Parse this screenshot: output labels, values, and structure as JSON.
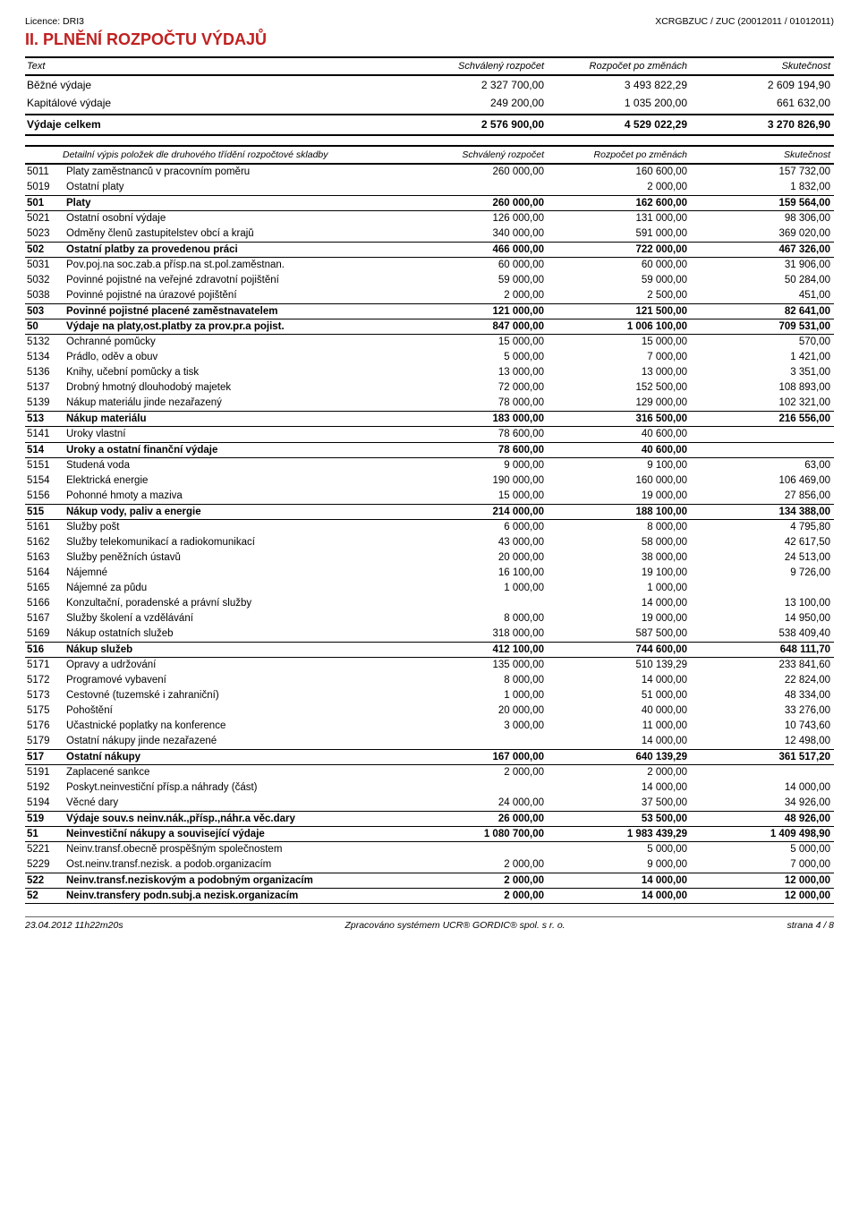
{
  "header": {
    "licence": "Licence: DRI3",
    "system": "XCRGBZUC / ZUC (20012011 / 01012011)"
  },
  "title": "II. PLNĚNÍ ROZPOČTU VÝDAJŮ",
  "columns": {
    "text": "Text",
    "approved": "Schválený rozpočet",
    "adjusted": "Rozpočet po změnách",
    "actual": "Skutečnost"
  },
  "summary": [
    {
      "label": "Běžné výdaje",
      "approved": "2 327 700,00",
      "adjusted": "3 493 822,29",
      "actual": "2 609 194,90"
    },
    {
      "label": "Kapitálové výdaje",
      "approved": "249 200,00",
      "adjusted": "1 035 200,00",
      "actual": "661 632,00"
    },
    {
      "label": "Výdaje celkem",
      "approved": "2 576 900,00",
      "adjusted": "4 529 022,29",
      "actual": "3 270 826,90",
      "bold": true
    }
  ],
  "subheader": "Detailní výpis položek dle druhového třídění rozpočtové skladby",
  "rows": [
    {
      "code": "5011",
      "text": "Platy zaměstnanců v pracovním poměru",
      "a": "260 000,00",
      "b": "160 600,00",
      "c": "157 732,00"
    },
    {
      "code": "5019",
      "text": "Ostatní platy",
      "a": "",
      "b": "2 000,00",
      "c": "1 832,00"
    },
    {
      "code": "501",
      "text": "Platy",
      "a": "260 000,00",
      "b": "162 600,00",
      "c": "159 564,00",
      "bold": true
    },
    {
      "code": "5021",
      "text": "Ostatní osobní výdaje",
      "a": "126 000,00",
      "b": "131 000,00",
      "c": "98 306,00"
    },
    {
      "code": "5023",
      "text": "Odměny členů zastupitelstev obcí a krajů",
      "a": "340 000,00",
      "b": "591 000,00",
      "c": "369 020,00"
    },
    {
      "code": "502",
      "text": "Ostatní platby za provedenou práci",
      "a": "466 000,00",
      "b": "722 000,00",
      "c": "467 326,00",
      "bold": true
    },
    {
      "code": "5031",
      "text": "Pov.poj.na soc.zab.a přísp.na st.pol.zaměstnan.",
      "a": "60 000,00",
      "b": "60 000,00",
      "c": "31 906,00"
    },
    {
      "code": "5032",
      "text": "Povinné pojistné na veřejné zdravotní pojištění",
      "a": "59 000,00",
      "b": "59 000,00",
      "c": "50 284,00"
    },
    {
      "code": "5038",
      "text": "Povinné pojistné na úrazové pojištění",
      "a": "2 000,00",
      "b": "2 500,00",
      "c": "451,00"
    },
    {
      "code": "503",
      "text": "Povinné pojistné placené zaměstnavatelem",
      "a": "121 000,00",
      "b": "121 500,00",
      "c": "82 641,00",
      "bold": true
    },
    {
      "code": "50",
      "text": "Výdaje na platy,ost.platby za prov.pr.a pojist.",
      "a": "847 000,00",
      "b": "1 006 100,00",
      "c": "709 531,00",
      "bold": true
    },
    {
      "code": "5132",
      "text": "Ochranné pomůcky",
      "a": "15 000,00",
      "b": "15 000,00",
      "c": "570,00"
    },
    {
      "code": "5134",
      "text": "Prádlo, oděv a obuv",
      "a": "5 000,00",
      "b": "7 000,00",
      "c": "1 421,00"
    },
    {
      "code": "5136",
      "text": "Knihy, učební pomůcky a tisk",
      "a": "13 000,00",
      "b": "13 000,00",
      "c": "3 351,00"
    },
    {
      "code": "5137",
      "text": "Drobný hmotný dlouhodobý majetek",
      "a": "72 000,00",
      "b": "152 500,00",
      "c": "108 893,00"
    },
    {
      "code": "5139",
      "text": "Nákup materiálu jinde nezařazený",
      "a": "78 000,00",
      "b": "129 000,00",
      "c": "102 321,00"
    },
    {
      "code": "513",
      "text": "Nákup materiálu",
      "a": "183 000,00",
      "b": "316 500,00",
      "c": "216 556,00",
      "bold": true
    },
    {
      "code": "5141",
      "text": "Úroky vlastní",
      "a": "78 600,00",
      "b": "40 600,00",
      "c": ""
    },
    {
      "code": "514",
      "text": "Úroky a ostatní finanční výdaje",
      "a": "78 600,00",
      "b": "40 600,00",
      "c": "",
      "bold": true
    },
    {
      "code": "5151",
      "text": "Studená voda",
      "a": "9 000,00",
      "b": "9 100,00",
      "c": "63,00"
    },
    {
      "code": "5154",
      "text": "Elektrická energie",
      "a": "190 000,00",
      "b": "160 000,00",
      "c": "106 469,00"
    },
    {
      "code": "5156",
      "text": "Pohonné hmoty a maziva",
      "a": "15 000,00",
      "b": "19 000,00",
      "c": "27 856,00"
    },
    {
      "code": "515",
      "text": "Nákup vody, paliv a energie",
      "a": "214 000,00",
      "b": "188 100,00",
      "c": "134 388,00",
      "bold": true
    },
    {
      "code": "5161",
      "text": "Služby pošt",
      "a": "6 000,00",
      "b": "8 000,00",
      "c": "4 795,80"
    },
    {
      "code": "5162",
      "text": "Služby telekomunikací a radiokomunikací",
      "a": "43 000,00",
      "b": "58 000,00",
      "c": "42 617,50"
    },
    {
      "code": "5163",
      "text": "Služby peněžních ústavů",
      "a": "20 000,00",
      "b": "38 000,00",
      "c": "24 513,00"
    },
    {
      "code": "5164",
      "text": "Nájemné",
      "a": "16 100,00",
      "b": "19 100,00",
      "c": "9 726,00"
    },
    {
      "code": "5165",
      "text": "Nájemné za půdu",
      "a": "1 000,00",
      "b": "1 000,00",
      "c": ""
    },
    {
      "code": "5166",
      "text": "Konzultační, poradenské a právní služby",
      "a": "",
      "b": "14 000,00",
      "c": "13 100,00"
    },
    {
      "code": "5167",
      "text": "Služby školení a vzdělávání",
      "a": "8 000,00",
      "b": "19 000,00",
      "c": "14 950,00"
    },
    {
      "code": "5169",
      "text": "Nákup ostatních služeb",
      "a": "318 000,00",
      "b": "587 500,00",
      "c": "538 409,40"
    },
    {
      "code": "516",
      "text": "Nákup služeb",
      "a": "412 100,00",
      "b": "744 600,00",
      "c": "648 111,70",
      "bold": true
    },
    {
      "code": "5171",
      "text": "Opravy a udržování",
      "a": "135 000,00",
      "b": "510 139,29",
      "c": "233 841,60"
    },
    {
      "code": "5172",
      "text": "Programové vybavení",
      "a": "8 000,00",
      "b": "14 000,00",
      "c": "22 824,00"
    },
    {
      "code": "5173",
      "text": "Cestovné (tuzemské i zahraniční)",
      "a": "1 000,00",
      "b": "51 000,00",
      "c": "48 334,00"
    },
    {
      "code": "5175",
      "text": "Pohoštění",
      "a": "20 000,00",
      "b": "40 000,00",
      "c": "33 276,00"
    },
    {
      "code": "5176",
      "text": "Účastnické poplatky na konference",
      "a": "3 000,00",
      "b": "11 000,00",
      "c": "10 743,60"
    },
    {
      "code": "5179",
      "text": "Ostatní nákupy jinde nezařazené",
      "a": "",
      "b": "14 000,00",
      "c": "12 498,00"
    },
    {
      "code": "517",
      "text": "Ostatní nákupy",
      "a": "167 000,00",
      "b": "640 139,29",
      "c": "361 517,20",
      "bold": true
    },
    {
      "code": "5191",
      "text": "Zaplacené sankce",
      "a": "2 000,00",
      "b": "2 000,00",
      "c": ""
    },
    {
      "code": "5192",
      "text": "Poskyt.neinvestiční přísp.a náhrady (část)",
      "a": "",
      "b": "14 000,00",
      "c": "14 000,00"
    },
    {
      "code": "5194",
      "text": "Věcné dary",
      "a": "24 000,00",
      "b": "37 500,00",
      "c": "34 926,00"
    },
    {
      "code": "519",
      "text": "Výdaje souv.s neinv.nák.,přísp.,náhr.a věc.dary",
      "a": "26 000,00",
      "b": "53 500,00",
      "c": "48 926,00",
      "bold": true
    },
    {
      "code": "51",
      "text": "Neinvestiční nákupy a související výdaje",
      "a": "1 080 700,00",
      "b": "1 983 439,29",
      "c": "1 409 498,90",
      "bold": true
    },
    {
      "code": "5221",
      "text": "Neinv.transf.obecně prospěšným společnostem",
      "a": "",
      "b": "5 000,00",
      "c": "5 000,00"
    },
    {
      "code": "5229",
      "text": "Ost.neinv.transf.nezisk. a podob.organizacím",
      "a": "2 000,00",
      "b": "9 000,00",
      "c": "7 000,00"
    },
    {
      "code": "522",
      "text": "Neinv.transf.neziskovým a podobným organizacím",
      "a": "2 000,00",
      "b": "14 000,00",
      "c": "12 000,00",
      "bold": true
    },
    {
      "code": "52",
      "text": "Neinv.transfery podn.subj.a nezisk.organizacím",
      "a": "2 000,00",
      "b": "14 000,00",
      "c": "12 000,00",
      "bold": true
    }
  ],
  "footer": {
    "timestamp": "23.04.2012 11h22m20s",
    "generator": "Zpracováno systémem UCR® GORDIC® spol. s  r. o.",
    "page": "strana 4 / 8"
  }
}
